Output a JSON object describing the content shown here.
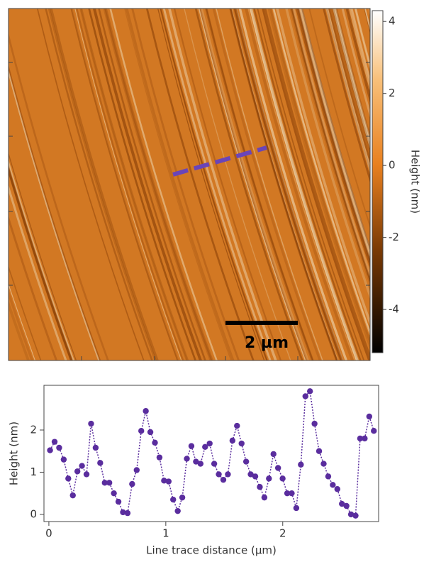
{
  "chart_data": [
    {
      "type": "image",
      "clim": [
        -5.2,
        4.3
      ],
      "cticks": [
        -4,
        -2,
        0,
        2,
        4
      ],
      "colorbar_label": "Height (nm)",
      "scale_bar_label": "2 µm",
      "trace_color": "#6a45b8"
    },
    {
      "type": "line",
      "xlabel": "Line trace distance (µm)",
      "ylabel": "Height (nm)",
      "xlim": [
        -0.042,
        2.82
      ],
      "ylim": [
        -0.17,
        3.06
      ],
      "xticks": [
        0,
        1,
        2
      ],
      "yticks": [
        0,
        1,
        2
      ],
      "x": [
        0.01,
        0.049,
        0.088,
        0.127,
        0.166,
        0.205,
        0.244,
        0.283,
        0.322,
        0.361,
        0.4,
        0.439,
        0.478,
        0.517,
        0.556,
        0.595,
        0.634,
        0.673,
        0.712,
        0.751,
        0.79,
        0.829,
        0.868,
        0.907,
        0.946,
        0.985,
        1.024,
        1.063,
        1.102,
        1.141,
        1.18,
        1.219,
        1.258,
        1.297,
        1.336,
        1.375,
        1.414,
        1.453,
        1.492,
        1.531,
        1.57,
        1.609,
        1.648,
        1.687,
        1.726,
        1.765,
        1.804,
        1.843,
        1.882,
        1.921,
        1.96,
        1.999,
        2.038,
        2.077,
        2.116,
        2.155,
        2.194,
        2.233,
        2.272,
        2.311,
        2.35,
        2.389,
        2.428,
        2.467,
        2.506,
        2.545,
        2.584,
        2.623,
        2.662,
        2.701,
        2.74,
        2.779
      ],
      "series": [
        {
          "color": "#5a2d9e",
          "values": [
            1.52,
            1.72,
            1.58,
            1.3,
            0.85,
            0.45,
            1.02,
            1.15,
            0.95,
            2.15,
            1.58,
            1.22,
            0.75,
            0.75,
            0.5,
            0.3,
            0.05,
            0.03,
            0.72,
            1.05,
            1.98,
            2.45,
            1.95,
            1.7,
            1.35,
            0.8,
            0.78,
            0.35,
            0.08,
            0.4,
            1.32,
            1.62,
            1.25,
            1.2,
            1.6,
            1.68,
            1.2,
            0.95,
            0.82,
            0.95,
            1.75,
            2.1,
            1.68,
            1.25,
            0.95,
            0.9,
            0.65,
            0.4,
            0.85,
            1.43,
            1.1,
            0.85,
            0.5,
            0.5,
            0.15,
            1.18,
            2.8,
            2.92,
            2.15,
            1.5,
            1.2,
            0.9,
            0.7,
            0.6,
            0.25,
            0.2,
            0.0,
            -0.03,
            1.8,
            1.8,
            2.32,
            1.98
          ]
        }
      ]
    }
  ]
}
